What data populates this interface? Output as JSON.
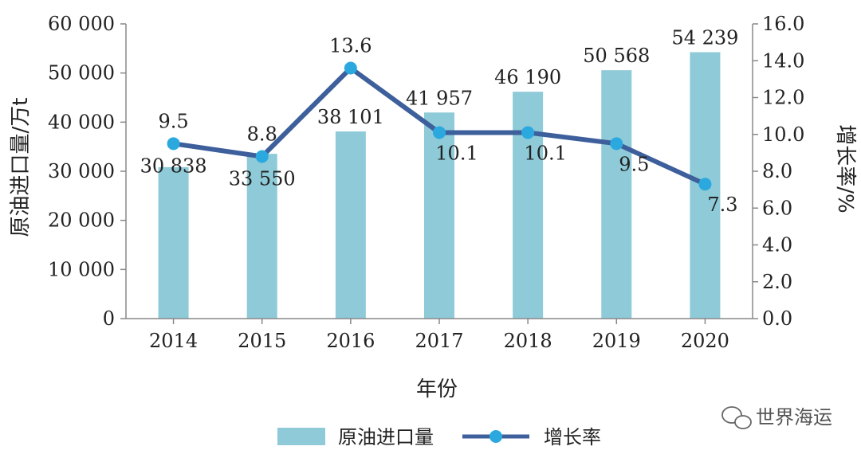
{
  "chart_data": {
    "type": "bar",
    "categories": [
      "2014",
      "2015",
      "2016",
      "2017",
      "2018",
      "2019",
      "2020"
    ],
    "series": [
      {
        "name": "原油进口量",
        "type": "bar",
        "axis": "left",
        "values": [
          30838,
          33550,
          38101,
          41957,
          46190,
          50568,
          54239
        ],
        "labels": [
          "30 838",
          "33 550",
          "38 101",
          "41 957",
          "46 190",
          "50 568",
          "54 239"
        ]
      },
      {
        "name": "增长率",
        "type": "line",
        "axis": "right",
        "values": [
          9.5,
          8.8,
          13.6,
          10.1,
          10.1,
          9.5,
          7.3
        ],
        "labels": [
          "9.5",
          "8.8",
          "13.6",
          "10.1",
          "10.1",
          "9.5",
          "7.3"
        ]
      }
    ],
    "xlabel": "年份",
    "ylabel": "原油进口量/万t",
    "y2label": "增长率/%",
    "ylim": [
      0,
      60000
    ],
    "y2lim": [
      0,
      16
    ],
    "yticks": [
      "0",
      "10 000",
      "20 000",
      "30 000",
      "40 000",
      "50 000",
      "60 000"
    ],
    "y2ticks": [
      "0.0",
      "2.0",
      "4.0",
      "6.0",
      "8.0",
      "10.0",
      "12.0",
      "14.0",
      "16.0"
    ],
    "legend": "bottom",
    "grid": false,
    "colors": {
      "bar": "#8ecad8",
      "line": "#3d5f9b",
      "marker": "#2ba9df"
    }
  },
  "watermark": {
    "text": "世界海运",
    "icon": "wechat-icon"
  }
}
